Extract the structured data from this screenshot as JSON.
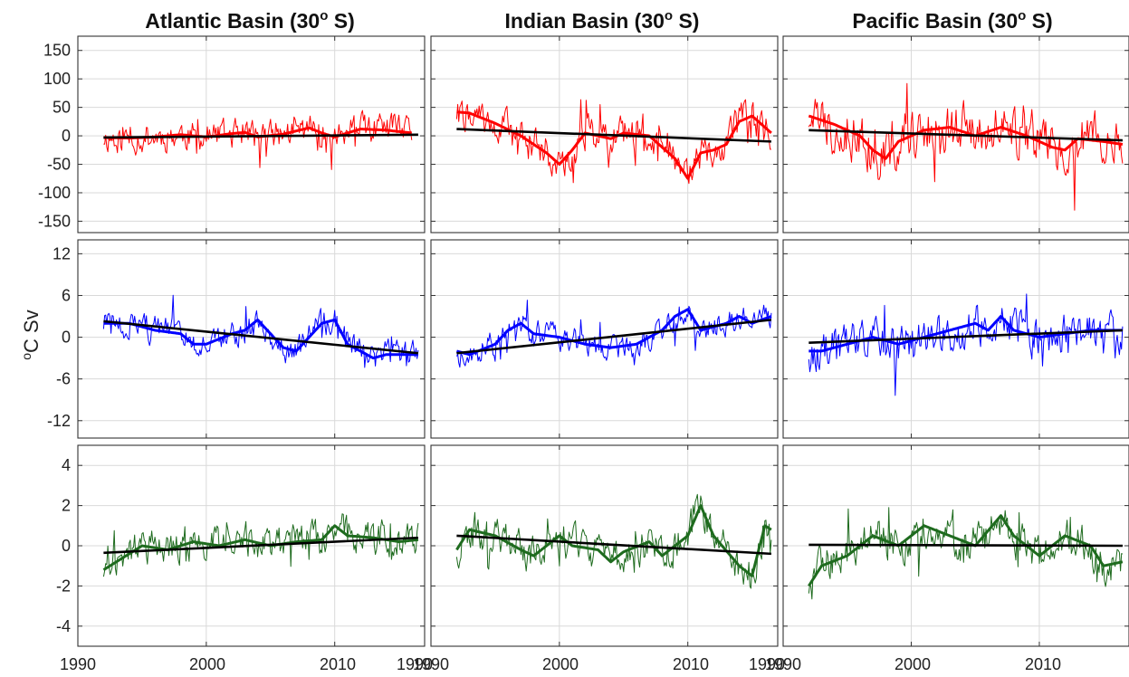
{
  "figure": {
    "ylabel": {
      "base": "C Sv",
      "sup": "o"
    },
    "columns": [
      {
        "title": "Atlantic Basin (30",
        "sup": "o",
        "suffix": " S)"
      },
      {
        "title": "Indian Basin (30",
        "sup": "o",
        "suffix": " S)"
      },
      {
        "title": "Pacific Basin (30",
        "sup": "o",
        "suffix": " S)"
      }
    ],
    "xticks": [
      [
        "1990",
        "2000",
        "2010",
        "1990"
      ],
      [
        "1990",
        "2000",
        "2010",
        "1990"
      ],
      [
        "1990",
        "2000",
        "2010"
      ]
    ]
  },
  "chart_data": [
    {
      "type": "line",
      "panel": "atlantic-row1",
      "color": "#ff0000",
      "xlim": [
        1990,
        2017
      ],
      "ylim": [
        -170,
        175
      ],
      "yticks": [
        150,
        100,
        50,
        0,
        -50,
        -100,
        -150
      ],
      "grid": true,
      "smooth": [
        [
          1992,
          -3
        ],
        [
          1994,
          -4
        ],
        [
          1996,
          -2
        ],
        [
          1998,
          2
        ],
        [
          2000,
          -2
        ],
        [
          2002,
          4
        ],
        [
          2003,
          6
        ],
        [
          2004,
          -2
        ],
        [
          2006,
          3
        ],
        [
          2008,
          14
        ],
        [
          2009,
          5
        ],
        [
          2010,
          -2
        ],
        [
          2012,
          12
        ],
        [
          2014,
          10
        ],
        [
          2016,
          5
        ]
      ],
      "trend": [
        [
          1992,
          -3
        ],
        [
          2016.5,
          2
        ]
      ],
      "amplitude": 40,
      "seed": 11
    },
    {
      "type": "line",
      "panel": "indian-row1",
      "color": "#ff0000",
      "xlim": [
        1990,
        2017
      ],
      "ylim": [
        -170,
        175
      ],
      "yticks": [
        150,
        100,
        50,
        0,
        -50,
        -100,
        -150
      ],
      "grid": true,
      "smooth": [
        [
          1992,
          42
        ],
        [
          1993,
          40
        ],
        [
          1995,
          22
        ],
        [
          1997,
          0
        ],
        [
          1999,
          -30
        ],
        [
          2000,
          -50
        ],
        [
          2001,
          -25
        ],
        [
          2002,
          5
        ],
        [
          2004,
          -5
        ],
        [
          2005,
          5
        ],
        [
          2007,
          0
        ],
        [
          2009,
          -40
        ],
        [
          2010,
          -75
        ],
        [
          2011,
          -30
        ],
        [
          2012,
          -25
        ],
        [
          2013,
          -15
        ],
        [
          2014,
          25
        ],
        [
          2015,
          35
        ],
        [
          2016.5,
          5
        ]
      ],
      "trend": [
        [
          1992,
          12
        ],
        [
          2016.5,
          -10
        ]
      ],
      "amplitude": 45,
      "seed": 22
    },
    {
      "type": "line",
      "panel": "pacific-row1",
      "color": "#ff0000",
      "xlim": [
        1990,
        2017
      ],
      "ylim": [
        -170,
        175
      ],
      "yticks": [
        150,
        100,
        50,
        0,
        -50,
        -100,
        -150
      ],
      "grid": true,
      "smooth": [
        [
          1992,
          35
        ],
        [
          1994,
          20
        ],
        [
          1996,
          0
        ],
        [
          1997,
          -25
        ],
        [
          1998,
          -40
        ],
        [
          1999,
          -10
        ],
        [
          2001,
          10
        ],
        [
          2003,
          15
        ],
        [
          2005,
          0
        ],
        [
          2007,
          15
        ],
        [
          2009,
          0
        ],
        [
          2011,
          -20
        ],
        [
          2012,
          -25
        ],
        [
          2013,
          -5
        ],
        [
          2015,
          -10
        ],
        [
          2016.5,
          -15
        ]
      ],
      "trend": [
        [
          1992,
          10
        ],
        [
          2016.5,
          -8
        ]
      ],
      "amplitude": 70,
      "seed": 33
    },
    {
      "type": "line",
      "panel": "atlantic-row2",
      "color": "#0000ff",
      "xlim": [
        1990,
        2017
      ],
      "ylim": [
        -14.5,
        14
      ],
      "yticks": [
        12,
        6,
        0,
        -6,
        -12
      ],
      "grid": true,
      "smooth": [
        [
          1992,
          2
        ],
        [
          1994,
          2
        ],
        [
          1996,
          1
        ],
        [
          1998,
          0.5
        ],
        [
          1999,
          -1
        ],
        [
          2000,
          -1
        ],
        [
          2002,
          0.5
        ],
        [
          2003,
          1
        ],
        [
          2004,
          2.5
        ],
        [
          2005,
          0.5
        ],
        [
          2006,
          -1.5
        ],
        [
          2007,
          -2
        ],
        [
          2008,
          0
        ],
        [
          2009,
          2
        ],
        [
          2010,
          2.5
        ],
        [
          2011,
          -1
        ],
        [
          2012,
          -2
        ],
        [
          2013,
          -3
        ],
        [
          2014,
          -2.5
        ],
        [
          2016.5,
          -2.5
        ]
      ],
      "trend": [
        [
          1992,
          2.3
        ],
        [
          2016.5,
          -2.3
        ]
      ],
      "amplitude": 3,
      "seed": 44
    },
    {
      "type": "line",
      "panel": "indian-row2",
      "color": "#0000ff",
      "xlim": [
        1990,
        2017
      ],
      "ylim": [
        -14.5,
        14
      ],
      "yticks": [
        12,
        6,
        0,
        -6,
        -12
      ],
      "grid": true,
      "smooth": [
        [
          1992,
          -2
        ],
        [
          1993,
          -2.5
        ],
        [
          1995,
          -1
        ],
        [
          1996,
          1
        ],
        [
          1997,
          2
        ],
        [
          1998,
          0.5
        ],
        [
          2000,
          0
        ],
        [
          2002,
          -1
        ],
        [
          2004,
          -1.5
        ],
        [
          2006,
          -1
        ],
        [
          2007,
          0
        ],
        [
          2008,
          1
        ],
        [
          2009,
          3
        ],
        [
          2010,
          4
        ],
        [
          2011,
          1
        ],
        [
          2013,
          2
        ],
        [
          2014,
          3
        ],
        [
          2015,
          2
        ],
        [
          2016.5,
          3
        ]
      ],
      "trend": [
        [
          1992,
          -2.3
        ],
        [
          2016.5,
          2.5
        ]
      ],
      "amplitude": 2.8,
      "seed": 55
    },
    {
      "type": "line",
      "panel": "pacific-row2",
      "color": "#0000ff",
      "xlim": [
        1990,
        2017
      ],
      "ylim": [
        -14.5,
        14
      ],
      "yticks": [
        12,
        6,
        0,
        -6,
        -12
      ],
      "grid": true,
      "smooth": [
        [
          1992,
          -2
        ],
        [
          1993,
          -2
        ],
        [
          1995,
          -1
        ],
        [
          1997,
          0
        ],
        [
          1999,
          -1
        ],
        [
          2001,
          0
        ],
        [
          2003,
          1
        ],
        [
          2005,
          2
        ],
        [
          2006,
          1
        ],
        [
          2007,
          3
        ],
        [
          2008,
          1
        ],
        [
          2010,
          0
        ],
        [
          2012,
          0.5
        ],
        [
          2014,
          1
        ],
        [
          2016.5,
          1
        ]
      ],
      "trend": [
        [
          1992,
          -0.8
        ],
        [
          2016.5,
          1
        ]
      ],
      "amplitude": 4.5,
      "seed": 66
    },
    {
      "type": "line",
      "panel": "atlantic-row3",
      "color": "#1e6b1e",
      "xlim": [
        1990,
        2017
      ],
      "ylim": [
        -5,
        5
      ],
      "yticks": [
        4,
        2,
        0,
        -2,
        -4
      ],
      "grid": true,
      "smooth": [
        [
          1992,
          -1.2
        ],
        [
          1993,
          -0.8
        ],
        [
          1995,
          0
        ],
        [
          1997,
          -0.2
        ],
        [
          1999,
          0.2
        ],
        [
          2001,
          0
        ],
        [
          2003,
          0.3
        ],
        [
          2005,
          0
        ],
        [
          2007,
          0.2
        ],
        [
          2009,
          0.3
        ],
        [
          2010,
          1
        ],
        [
          2011,
          0.5
        ],
        [
          2013,
          0.4
        ],
        [
          2015,
          0.2
        ],
        [
          2016.5,
          0.3
        ]
      ],
      "trend": [
        [
          1992,
          -0.35
        ],
        [
          2016.5,
          0.4
        ]
      ],
      "amplitude": 1.3,
      "seed": 77
    },
    {
      "type": "line",
      "panel": "indian-row3",
      "color": "#1e6b1e",
      "xlim": [
        1990,
        2017
      ],
      "ylim": [
        -5,
        5
      ],
      "yticks": [
        4,
        2,
        0,
        -2,
        -4
      ],
      "grid": true,
      "smooth": [
        [
          1992,
          -0.2
        ],
        [
          1993,
          0.8
        ],
        [
          1995,
          0.5
        ],
        [
          1997,
          -0.2
        ],
        [
          1998,
          -0.5
        ],
        [
          2000,
          0.5
        ],
        [
          2001,
          0
        ],
        [
          2003,
          -0.2
        ],
        [
          2004,
          -0.8
        ],
        [
          2005,
          -0.3
        ],
        [
          2007,
          0.2
        ],
        [
          2008,
          -0.5
        ],
        [
          2009,
          0
        ],
        [
          2010,
          0.5
        ],
        [
          2011,
          2
        ],
        [
          2012,
          0.5
        ],
        [
          2014,
          -1
        ],
        [
          2015,
          -1.5
        ],
        [
          2016,
          1
        ],
        [
          2016.5,
          0.8
        ]
      ],
      "trend": [
        [
          1992,
          0.5
        ],
        [
          2016.5,
          -0.4
        ]
      ],
      "amplitude": 1.4,
      "seed": 88
    },
    {
      "type": "line",
      "panel": "pacific-row3",
      "color": "#1e6b1e",
      "xlim": [
        1990,
        2017
      ],
      "ylim": [
        -5,
        5
      ],
      "yticks": [
        4,
        2,
        0,
        -2,
        -4
      ],
      "grid": true,
      "smooth": [
        [
          1992,
          -2
        ],
        [
          1993,
          -1
        ],
        [
          1995,
          -0.5
        ],
        [
          1997,
          0.5
        ],
        [
          1999,
          0
        ],
        [
          2001,
          1
        ],
        [
          2003,
          0.5
        ],
        [
          2005,
          0
        ],
        [
          2007,
          1.5
        ],
        [
          2008,
          0.5
        ],
        [
          2010,
          -0.5
        ],
        [
          2012,
          0.5
        ],
        [
          2014,
          0
        ],
        [
          2015,
          -1
        ],
        [
          2016.5,
          -0.8
        ]
      ],
      "trend": [
        [
          1992,
          0.05
        ],
        [
          2016.5,
          0
        ]
      ],
      "amplitude": 1.5,
      "seed": 99
    }
  ]
}
